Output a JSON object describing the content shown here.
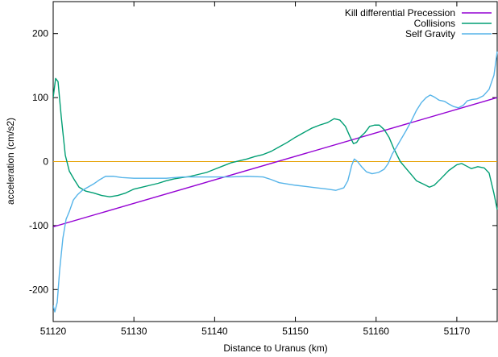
{
  "chart_data": {
    "type": "line",
    "xlabel": "Distance to Uranus (km)",
    "ylabel": "acceleration (cm/s2)",
    "xlim": [
      51120,
      51175
    ],
    "ylim": [
      -250,
      250
    ],
    "xticks": [
      51120,
      51130,
      51140,
      51150,
      51160,
      51170
    ],
    "yticks": [
      -200,
      -100,
      0,
      100,
      200
    ],
    "legend_position": "top-right",
    "grid": false,
    "zero_line": {
      "y": 0,
      "color": "#e6a000"
    },
    "series": [
      {
        "name": "Kill differential Precession",
        "color": "#9400d3",
        "points": [
          [
            51120,
            -102
          ],
          [
            51175,
            100
          ]
        ]
      },
      {
        "name": "Collisions",
        "color": "#009e73",
        "points": [
          [
            51120.0,
            100
          ],
          [
            51120.3,
            130
          ],
          [
            51120.6,
            125
          ],
          [
            51121.0,
            70
          ],
          [
            51121.5,
            10
          ],
          [
            51122.0,
            -15
          ],
          [
            51122.6,
            -28
          ],
          [
            51123.2,
            -40
          ],
          [
            51124.0,
            -46
          ],
          [
            51125.0,
            -49
          ],
          [
            51126.0,
            -53
          ],
          [
            51127.0,
            -55
          ],
          [
            51128.0,
            -53
          ],
          [
            51129.0,
            -49
          ],
          [
            51130.0,
            -43
          ],
          [
            51131.0,
            -40
          ],
          [
            51132.0,
            -37
          ],
          [
            51133.0,
            -34
          ],
          [
            51134.0,
            -30
          ],
          [
            51135.0,
            -27
          ],
          [
            51136.0,
            -25
          ],
          [
            51137.0,
            -23
          ],
          [
            51138.0,
            -20
          ],
          [
            51139.0,
            -17
          ],
          [
            51140.0,
            -12
          ],
          [
            51141.0,
            -7
          ],
          [
            51142.0,
            -2
          ],
          [
            51143.0,
            1
          ],
          [
            51144.0,
            4
          ],
          [
            51145.0,
            8
          ],
          [
            51146.0,
            11
          ],
          [
            51147.0,
            16
          ],
          [
            51148.0,
            23
          ],
          [
            51149.0,
            30
          ],
          [
            51150.0,
            38
          ],
          [
            51151.0,
            45
          ],
          [
            51152.0,
            52
          ],
          [
            51153.0,
            57
          ],
          [
            51154.0,
            61
          ],
          [
            51154.8,
            67
          ],
          [
            51155.5,
            65
          ],
          [
            51156.2,
            55
          ],
          [
            51156.8,
            38
          ],
          [
            51157.2,
            28
          ],
          [
            51157.6,
            30
          ],
          [
            51158.0,
            38
          ],
          [
            51158.6,
            45
          ],
          [
            51159.2,
            55
          ],
          [
            51159.8,
            57
          ],
          [
            51160.4,
            57
          ],
          [
            51161.0,
            50
          ],
          [
            51161.6,
            38
          ],
          [
            51162.2,
            20
          ],
          [
            51163.0,
            0
          ],
          [
            51164.0,
            -15
          ],
          [
            51165.0,
            -30
          ],
          [
            51166.0,
            -36
          ],
          [
            51166.6,
            -40
          ],
          [
            51167.2,
            -37
          ],
          [
            51168.0,
            -27
          ],
          [
            51169.0,
            -14
          ],
          [
            51170.0,
            -5
          ],
          [
            51170.6,
            -3
          ],
          [
            51171.2,
            -7
          ],
          [
            51171.8,
            -11
          ],
          [
            51172.6,
            -8
          ],
          [
            51173.4,
            -10
          ],
          [
            51174.0,
            -18
          ],
          [
            51174.6,
            -50
          ],
          [
            51175.0,
            -75
          ]
        ]
      },
      {
        "name": "Self Gravity",
        "color": "#56b4e9",
        "points": [
          [
            51120.0,
            -225
          ],
          [
            51120.2,
            -235
          ],
          [
            51120.5,
            -220
          ],
          [
            51120.8,
            -170
          ],
          [
            51121.2,
            -120
          ],
          [
            51121.6,
            -90
          ],
          [
            51122.0,
            -78
          ],
          [
            51122.5,
            -60
          ],
          [
            51123.0,
            -52
          ],
          [
            51123.6,
            -45
          ],
          [
            51124.3,
            -40
          ],
          [
            51125.0,
            -35
          ],
          [
            51125.8,
            -28
          ],
          [
            51126.5,
            -23
          ],
          [
            51127.5,
            -23
          ],
          [
            51128.5,
            -25
          ],
          [
            51130.0,
            -26
          ],
          [
            51132.0,
            -26
          ],
          [
            51134.0,
            -26
          ],
          [
            51136.0,
            -24
          ],
          [
            51138.0,
            -24
          ],
          [
            51140.0,
            -24
          ],
          [
            51142.0,
            -24
          ],
          [
            51144.0,
            -23
          ],
          [
            51146.0,
            -24
          ],
          [
            51147.0,
            -28
          ],
          [
            51148.0,
            -33
          ],
          [
            51150.0,
            -37
          ],
          [
            51152.0,
            -40
          ],
          [
            51154.0,
            -43
          ],
          [
            51155.0,
            -45
          ],
          [
            51156.0,
            -41
          ],
          [
            51156.5,
            -30
          ],
          [
            51157.0,
            -5
          ],
          [
            51157.3,
            4
          ],
          [
            51157.7,
            0
          ],
          [
            51158.2,
            -8
          ],
          [
            51158.8,
            -16
          ],
          [
            51159.5,
            -19
          ],
          [
            51160.3,
            -17
          ],
          [
            51161.0,
            -12
          ],
          [
            51161.5,
            -3
          ],
          [
            51162.0,
            12
          ],
          [
            51162.5,
            22
          ],
          [
            51163.0,
            33
          ],
          [
            51163.7,
            48
          ],
          [
            51164.3,
            62
          ],
          [
            51165.0,
            80
          ],
          [
            51165.6,
            92
          ],
          [
            51166.2,
            100
          ],
          [
            51166.7,
            104
          ],
          [
            51167.2,
            101
          ],
          [
            51167.8,
            96
          ],
          [
            51168.5,
            94
          ],
          [
            51169.0,
            90
          ],
          [
            51169.6,
            86
          ],
          [
            51170.2,
            84
          ],
          [
            51170.8,
            88
          ],
          [
            51171.3,
            95
          ],
          [
            51171.9,
            97
          ],
          [
            51172.5,
            98
          ],
          [
            51173.3,
            103
          ],
          [
            51174.0,
            113
          ],
          [
            51174.6,
            135
          ],
          [
            51175.0,
            172
          ]
        ]
      }
    ]
  }
}
